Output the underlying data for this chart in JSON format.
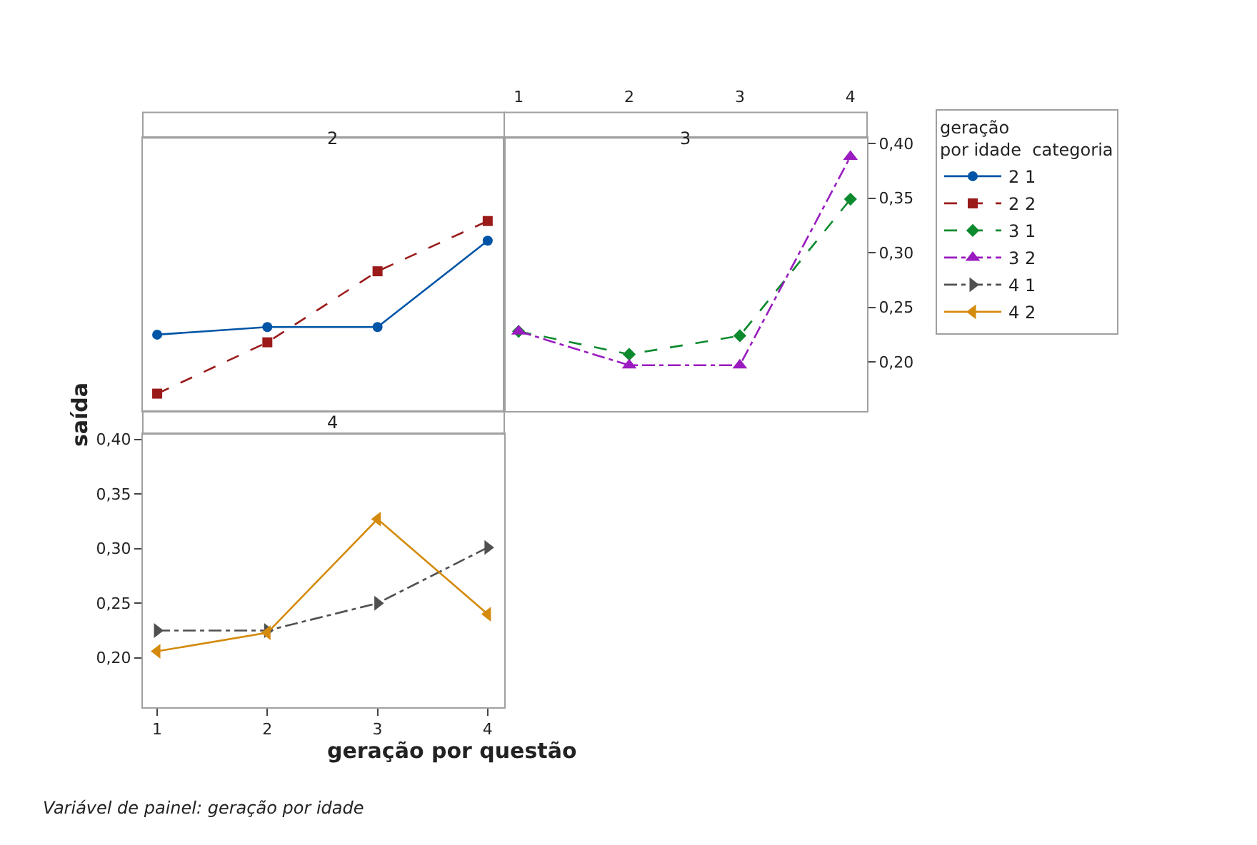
{
  "chart_data": [
    {
      "type": "line",
      "title": "2",
      "x": [
        1,
        2,
        3,
        4
      ],
      "xlim": [
        0.87,
        4.15
      ],
      "ylim": [
        0.155,
        0.405
      ],
      "grid": false,
      "legend": "right",
      "series": [
        {
          "name": "2 1",
          "color": "#0054a6",
          "marker": "circle",
          "line_style": "solid",
          "values": [
            0.225,
            0.232,
            0.232,
            0.311
          ]
        },
        {
          "name": "2 2",
          "color": "#9b1b1b",
          "marker": "square",
          "line_style": "dashed",
          "values": [
            0.171,
            0.218,
            0.283,
            0.329
          ]
        }
      ]
    },
    {
      "type": "line",
      "title": "3",
      "x": [
        1,
        2,
        3,
        4
      ],
      "xlim": [
        0.87,
        4.15
      ],
      "ylim": [
        0.155,
        0.405
      ],
      "xticks": [
        1,
        2,
        3,
        4
      ],
      "yticks": [
        {
          "value": 0.2,
          "label": "0,20"
        },
        {
          "value": 0.25,
          "label": "0,25"
        },
        {
          "value": 0.3,
          "label": "0,30"
        },
        {
          "value": 0.35,
          "label": "0,35"
        },
        {
          "value": 0.4,
          "label": "0,40"
        }
      ],
      "grid": false,
      "legend": "right",
      "legend_title": "geração\npor idade  categoria",
      "series": [
        {
          "name": "3 1",
          "color": "#0c8a2e",
          "marker": "diamond",
          "line_style": "dashed",
          "values": [
            0.228,
            0.207,
            0.224,
            0.349
          ]
        },
        {
          "name": "3 2",
          "color": "#9a1bbf",
          "marker": "triangle",
          "line_style": "dashdot",
          "values": [
            0.228,
            0.197,
            0.197,
            0.388
          ]
        }
      ]
    },
    {
      "type": "line",
      "title": "4",
      "x": [
        1,
        2,
        3,
        4
      ],
      "xlim": [
        0.87,
        4.15
      ],
      "ylim": [
        0.155,
        0.405
      ],
      "xticks": [
        1,
        2,
        3,
        4
      ],
      "yticks": [
        {
          "value": 0.2,
          "label": "0,20"
        },
        {
          "value": 0.25,
          "label": "0,25"
        },
        {
          "value": 0.3,
          "label": "0,30"
        },
        {
          "value": 0.35,
          "label": "0,35"
        },
        {
          "value": 0.4,
          "label": "0,40"
        }
      ],
      "grid": false,
      "legend": "right",
      "xlabel": "geração por questão",
      "ylabel": "saída",
      "annotations": [
        "Variável de painel: geração por idade"
      ],
      "series": [
        {
          "name": "4 1",
          "color": "#505050",
          "marker": "triangle-right",
          "line_style": "dashdot",
          "values": [
            0.225,
            0.225,
            0.25,
            0.301
          ]
        },
        {
          "name": "4 2",
          "color": "#d48a0c",
          "marker": "triangle-left",
          "line_style": "solid",
          "values": [
            0.206,
            0.223,
            0.327,
            0.24
          ]
        }
      ]
    }
  ]
}
